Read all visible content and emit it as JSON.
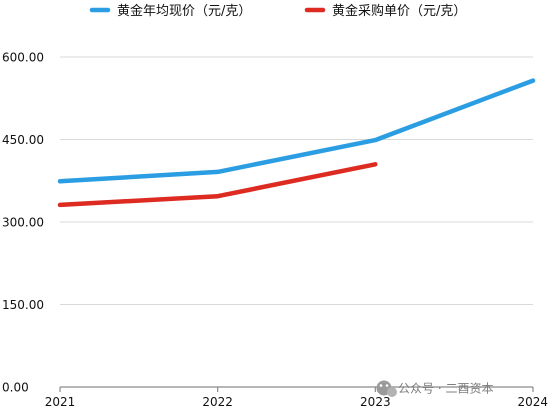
{
  "chart_data": {
    "type": "line",
    "title": "",
    "xlabel": "",
    "ylabel": "",
    "categories": [
      "2021",
      "2022",
      "2023",
      "2024"
    ],
    "y_ticks": [
      "0.00",
      "150.00",
      "300.00",
      "450.00",
      "600.00"
    ],
    "ylim": [
      0,
      600
    ],
    "grid": true,
    "legend_position": "top",
    "series": [
      {
        "name": "黄金年均现价（元/克）",
        "color": "#2b9de3",
        "values": [
          374,
          391,
          449,
          557
        ]
      },
      {
        "name": "黄金采购单价（元/克）",
        "color": "#dd2b22",
        "values": [
          331,
          347,
          405,
          null
        ]
      }
    ]
  },
  "watermark": {
    "text": "公众号 · 二酉资本"
  }
}
